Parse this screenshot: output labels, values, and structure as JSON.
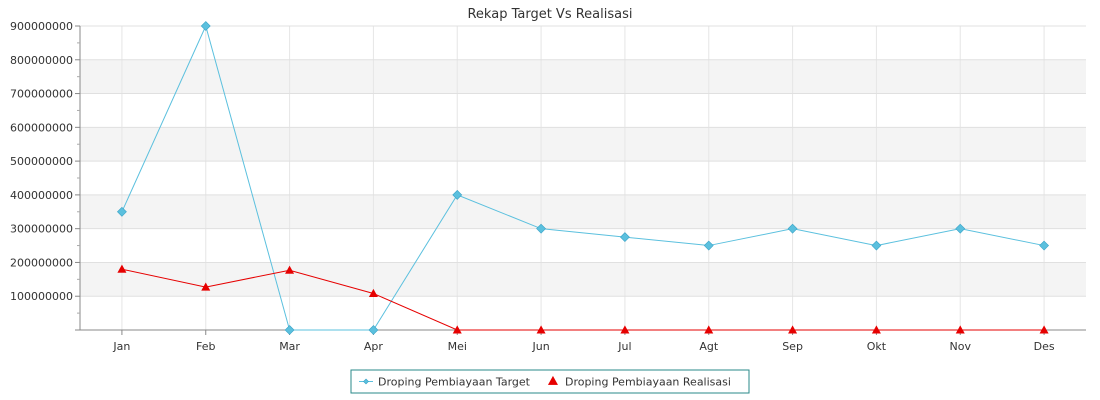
{
  "chart_data": {
    "type": "line",
    "title": "Rekap Target Vs Realisasi",
    "xlabel": "",
    "ylabel": "",
    "categories": [
      "Jan",
      "Feb",
      "Mar",
      "Apr",
      "Mei",
      "Jun",
      "Jul",
      "Agt",
      "Sep",
      "Okt",
      "Nov",
      "Des"
    ],
    "ylim": [
      0,
      900000000
    ],
    "yticks": [
      "100000000",
      "200000000",
      "300000000",
      "400000000",
      "500000000",
      "600000000",
      "700000000",
      "800000000",
      "900000000"
    ],
    "grid": true,
    "legend_position": "bottom-center",
    "series": [
      {
        "name": "Droping Pembiayaan Target",
        "color": "#5bc0de",
        "marker": "diamond",
        "values": [
          350000000,
          900000000,
          0,
          0,
          400000000,
          300000000,
          275000000,
          250000000,
          300000000,
          250000000,
          300000000,
          250000000
        ]
      },
      {
        "name": "Droping Pembiayaan Realisasi",
        "color": "#e60000",
        "marker": "triangle",
        "values": [
          180000000,
          127000000,
          177000000,
          108000000,
          0,
          0,
          0,
          0,
          0,
          0,
          0,
          0
        ]
      }
    ]
  }
}
